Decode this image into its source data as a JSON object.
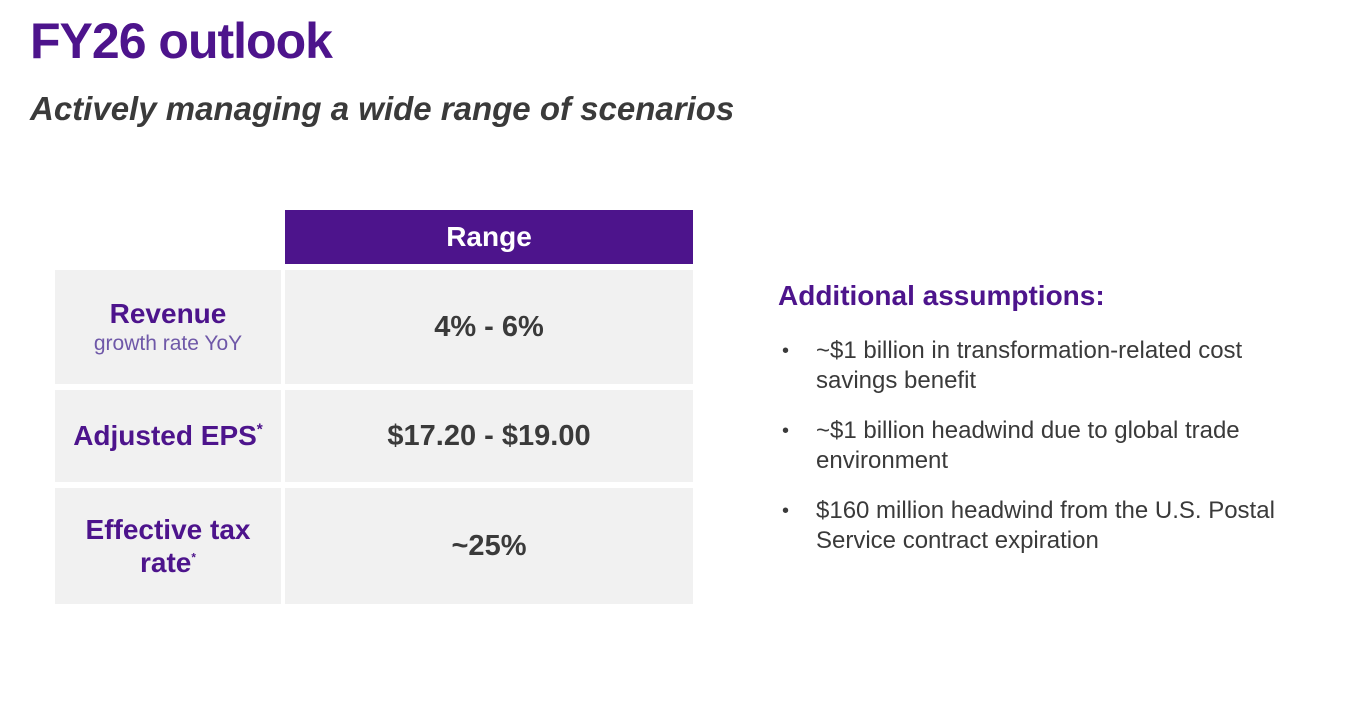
{
  "slide": {
    "title": "FY26 outlook",
    "subtitle": "Actively managing a wide range of scenarios"
  },
  "table": {
    "header": "Range",
    "rows": [
      {
        "label": "Revenue",
        "sublabel": "growth rate YoY",
        "footnote": "",
        "value": "4% - 6%"
      },
      {
        "label": "Adjusted EPS",
        "footnote": "*",
        "value": "$17.20 - $19.00"
      },
      {
        "label": "Effective tax rate",
        "footnote": "*",
        "value": "~25%"
      }
    ]
  },
  "assumptions": {
    "heading": "Additional assumptions:",
    "bullet_glyph": "•",
    "items": [
      "~$1 billion in transformation-related cost savings benefit",
      "~$1 billion headwind due to global trade environment",
      "$160 million headwind from the U.S. Postal Service contract expiration"
    ]
  },
  "colors": {
    "brand_purple": "#4D148C",
    "light_purple": "#6F58A8",
    "cell_background": "#F1F1F1",
    "text_dark": "#3A3A3A",
    "header_text": "#FFFFFF"
  }
}
